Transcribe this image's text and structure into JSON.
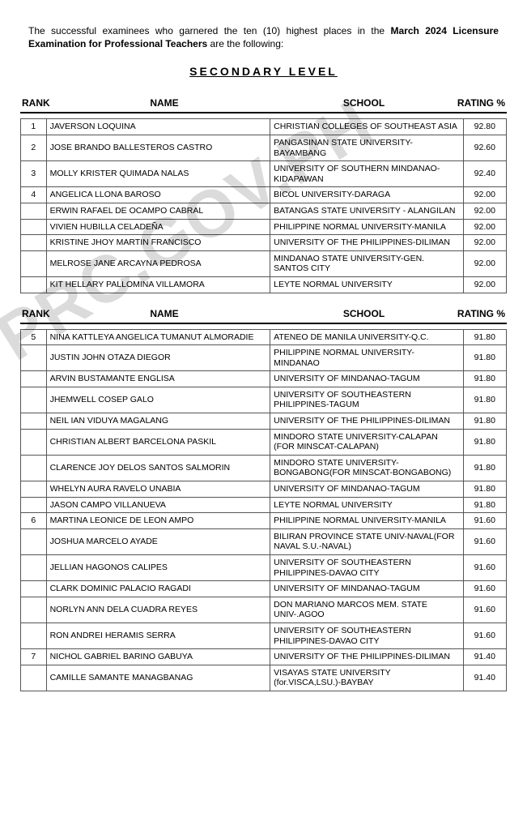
{
  "intro": {
    "pre": "The successful examinees who garnered the ten (10) highest places in the ",
    "bold1": "March 2024 Licensure Examination for Professional Teachers",
    "post": " are the following:"
  },
  "section_title": "SECONDARY LEVEL",
  "header": {
    "rank": "RANK",
    "name": "NAME",
    "school": "SCHOOL",
    "rating": "RATING %"
  },
  "watermark": "PRC.GOV.PH",
  "group1": [
    {
      "rank": "1",
      "name": "JAVERSON  LOQUINA",
      "school": "CHRISTIAN COLLEGES OF SOUTHEAST ASIA",
      "rating": "92.80"
    },
    {
      "rank": "2",
      "name": "JOSE BRANDO BALLESTEROS  CASTRO",
      "school": "PANGASINAN STATE UNIVERSITY-BAYAMBANG",
      "rating": "92.60"
    },
    {
      "rank": "3",
      "name": "MOLLY KRISTER QUIMADA  NALAS",
      "school": "UNIVERSITY OF SOUTHERN MINDANAO-KIDAPAWAN",
      "rating": "92.40"
    },
    {
      "rank": "4",
      "name": "ANGELICA LLONA  BAROSO",
      "school": "BICOL UNIVERSITY-DARAGA",
      "rating": "92.00"
    },
    {
      "rank": "",
      "name": "ERWIN RAFAEL DE OCAMPO  CABRAL",
      "school": "BATANGAS STATE UNIVERSITY - ALANGILAN",
      "rating": "92.00"
    },
    {
      "rank": "",
      "name": "VIVIEN HUBILLA  CELADEÑA",
      "school": "PHILIPPINE NORMAL UNIVERSITY-MANILA",
      "rating": "92.00"
    },
    {
      "rank": "",
      "name": "KRISTINE JHOY MARTIN  FRANCISCO",
      "school": "UNIVERSITY OF THE PHILIPPINES-DILIMAN",
      "rating": "92.00"
    },
    {
      "rank": "",
      "name": "MELROSE JANE ARCAYNA  PEDROSA",
      "school": "MINDANAO STATE UNIVERSITY-GEN. SANTOS CITY",
      "rating": "92.00"
    },
    {
      "rank": "",
      "name": "KIT HELLARY PALLOMINA  VILLAMORA",
      "school": "LEYTE NORMAL UNIVERSITY",
      "rating": "92.00"
    }
  ],
  "group2": [
    {
      "rank": "5",
      "name": "NINA KATTLEYA ANGELICA TUMANUT  ALMORADIE",
      "school": "ATENEO DE MANILA UNIVERSITY-Q.C.",
      "rating": "91.80"
    },
    {
      "rank": "",
      "name": "JUSTIN JOHN OTAZA  DIEGOR",
      "school": "PHILIPPINE NORMAL UNIVERSITY-MINDANAO",
      "rating": "91.80"
    },
    {
      "rank": "",
      "name": "ARVIN BUSTAMANTE  ENGLISA",
      "school": "UNIVERSITY OF MINDANAO-TAGUM",
      "rating": "91.80"
    },
    {
      "rank": "",
      "name": "JHEMWELL COSEP  GALO",
      "school": "UNIVERSITY OF SOUTHEASTERN PHILIPPINES-TAGUM",
      "rating": "91.80"
    },
    {
      "rank": "",
      "name": "NEIL IAN VIDUYA  MAGALANG",
      "school": "UNIVERSITY OF THE PHILIPPINES-DILIMAN",
      "rating": "91.80"
    },
    {
      "rank": "",
      "name": "CHRISTIAN ALBERT BARCELONA  PASKIL",
      "school": "MINDORO STATE UNIVERSITY-CALAPAN (FOR MINSCAT-CALAPAN)",
      "rating": "91.80"
    },
    {
      "rank": "",
      "name": "CLARENCE JOY DELOS SANTOS  SALMORIN",
      "school": "MINDORO STATE UNIVERSITY-BONGABONG(FOR MINSCAT-BONGABONG)",
      "rating": "91.80"
    },
    {
      "rank": "",
      "name": "WHELYN AURA RAVELO  UNABIA",
      "school": "UNIVERSITY OF MINDANAO-TAGUM",
      "rating": "91.80"
    },
    {
      "rank": "",
      "name": "JASON CAMPO  VILLANUEVA",
      "school": "LEYTE NORMAL UNIVERSITY",
      "rating": "91.80"
    },
    {
      "rank": "6",
      "name": "MARTINA LEONICE DE LEON  AMPO",
      "school": "PHILIPPINE NORMAL UNIVERSITY-MANILA",
      "rating": "91.60"
    },
    {
      "rank": "",
      "name": "JOSHUA MARCELO  AYADE",
      "school": "BILIRAN PROVINCE STATE UNIV-NAVAL(FOR NAVAL S.U.-NAVAL)",
      "rating": "91.60"
    },
    {
      "rank": "",
      "name": "JELLIAN HAGONOS  CALIPES",
      "school": "UNIVERSITY OF SOUTHEASTERN PHILIPPINES-DAVAO CITY",
      "rating": "91.60"
    },
    {
      "rank": "",
      "name": "CLARK DOMINIC PALACIO  RAGADI",
      "school": "UNIVERSITY OF MINDANAO-TAGUM",
      "rating": "91.60"
    },
    {
      "rank": "",
      "name": "NORLYN ANN DELA CUADRA  REYES",
      "school": "DON MARIANO MARCOS MEM. STATE UNIV-.AGOO",
      "rating": "91.60"
    },
    {
      "rank": "",
      "name": "RON ANDREI HERAMIS  SERRA",
      "school": "UNIVERSITY OF SOUTHEASTERN PHILIPPINES-DAVAO CITY",
      "rating": "91.60"
    },
    {
      "rank": "7",
      "name": "NICHOL GABRIEL BARINO  GABUYA",
      "school": "UNIVERSITY OF THE PHILIPPINES-DILIMAN",
      "rating": "91.40"
    },
    {
      "rank": "",
      "name": "CAMILLE SAMANTE  MANAGBANAG",
      "school": "VISAYAS STATE UNIVERSITY (for.VISCA,LSU.)-BAYBAY",
      "rating": "91.40"
    }
  ]
}
